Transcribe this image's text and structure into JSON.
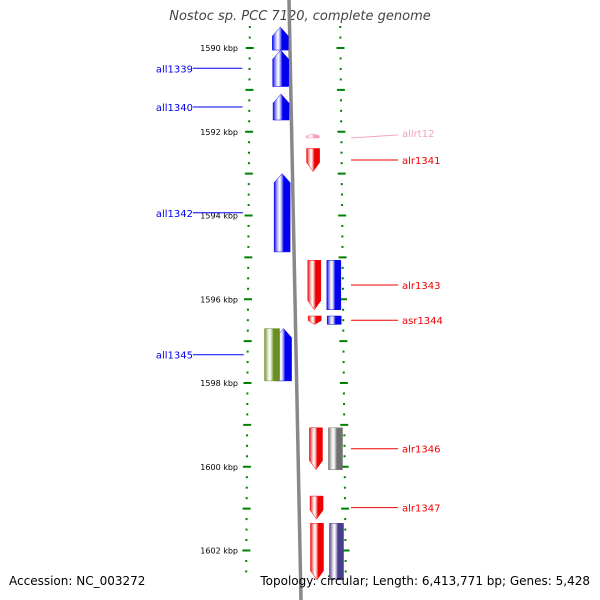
{
  "title": "Nostoc sp. PCC 7120, complete genome",
  "accession": "Accession: NC_003272",
  "summary": "Topology: circular; Length: 6,413,771 bp; Genes: 5,428",
  "colors": {
    "minus_strand": "#0000ee",
    "plus_strand": "#ee0000",
    "rna": "#f4a0c4",
    "olive": "#6b8e23",
    "gray": "#707070",
    "slate": "#483d8b",
    "ticks": "#008000"
  },
  "ruler": {
    "start_kbp": 1589.5,
    "end_kbp": 1602.6,
    "labels": [
      {
        "kbp": 1590,
        "text": "1590 kbp"
      },
      {
        "kbp": 1592,
        "text": "1592 kbp"
      },
      {
        "kbp": 1594,
        "text": "1594 kbp"
      },
      {
        "kbp": 1596,
        "text": "1596 kbp"
      },
      {
        "kbp": 1598,
        "text": "1598 kbp"
      },
      {
        "kbp": 1600,
        "text": "1600 kbp"
      },
      {
        "kbp": 1602,
        "text": "1602 kbp"
      }
    ]
  },
  "features": [
    {
      "name": "",
      "strand": "-",
      "track": "gene",
      "start_kbp": 1589.5,
      "end_kbp": 1590.05,
      "color": "#0000ee"
    },
    {
      "name": "all1339",
      "strand": "-",
      "track": "gene",
      "start_kbp": 1590.05,
      "end_kbp": 1590.92,
      "color": "#0000ee"
    },
    {
      "name": "all1340",
      "strand": "-",
      "track": "gene",
      "start_kbp": 1591.1,
      "end_kbp": 1591.72,
      "color": "#0000ee"
    },
    {
      "name": "allrt12",
      "strand": "-",
      "track": "inner",
      "start_kbp": 1592.05,
      "end_kbp": 1592.15,
      "color": "#f4a0c4"
    },
    {
      "name": "alr1341",
      "strand": "+",
      "track": "inner",
      "start_kbp": 1592.4,
      "end_kbp": 1592.95,
      "color": "#ee0000"
    },
    {
      "name": "all1342",
      "strand": "-",
      "track": "gene",
      "start_kbp": 1593.0,
      "end_kbp": 1594.87,
      "color": "#0000ee"
    },
    {
      "name": "alr1343",
      "strand": "+",
      "track": "inner",
      "start_kbp": 1595.07,
      "end_kbp": 1596.25,
      "color": "#ee0000"
    },
    {
      "name": "",
      "strand": "-",
      "track": "outer",
      "start_kbp": 1595.07,
      "end_kbp": 1596.25,
      "color": "#0000ee"
    },
    {
      "name": "asr1344",
      "strand": "+",
      "track": "inner",
      "start_kbp": 1596.4,
      "end_kbp": 1596.6,
      "color": "#ee0000"
    },
    {
      "name": "",
      "strand": "-",
      "track": "outer",
      "start_kbp": 1596.4,
      "end_kbp": 1596.6,
      "color": "#0000ee"
    },
    {
      "name": "all1345",
      "strand": "-",
      "track": "gene",
      "start_kbp": 1596.7,
      "end_kbp": 1597.95,
      "color": "#0000ee"
    },
    {
      "name": "",
      "strand": "-",
      "track": "leftbox",
      "start_kbp": 1596.7,
      "end_kbp": 1597.95,
      "color": "#6b8e23"
    },
    {
      "name": "alr1346",
      "strand": "+",
      "track": "inner",
      "start_kbp": 1599.07,
      "end_kbp": 1600.07,
      "color": "#ee0000"
    },
    {
      "name": "",
      "strand": "-",
      "track": "outer",
      "start_kbp": 1599.07,
      "end_kbp": 1600.07,
      "color": "#707070"
    },
    {
      "name": "alr1347",
      "strand": "+",
      "track": "inner",
      "start_kbp": 1600.7,
      "end_kbp": 1601.25,
      "color": "#ee0000"
    },
    {
      "name": "",
      "strand": "+",
      "track": "inner",
      "start_kbp": 1601.35,
      "end_kbp": 1602.7,
      "color": "#ee0000"
    },
    {
      "name": "",
      "strand": "-",
      "track": "outer",
      "start_kbp": 1601.35,
      "end_kbp": 1602.7,
      "color": "#483d8b"
    }
  ]
}
